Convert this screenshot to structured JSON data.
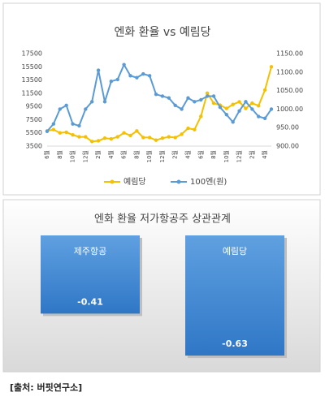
{
  "chart_data": [
    {
      "type": "line",
      "title": "엔화 환율 vs 예림당",
      "categories": [
        "6월",
        null,
        "8월",
        null,
        "10월",
        null,
        "12월",
        null,
        "2월",
        null,
        "4월",
        null,
        "6월",
        null,
        "8월",
        null,
        "10월",
        null,
        "12월",
        null,
        "2월",
        null,
        "4월",
        null,
        "6월",
        null,
        "8월",
        null,
        "10월",
        null,
        "12월",
        null,
        "2월",
        null,
        "4월",
        null
      ],
      "series": [
        {
          "name": "예림당",
          "color": "#f5c000",
          "values": [
            5800,
            6000,
            5500,
            5600,
            5200,
            4900,
            4900,
            4200,
            4300,
            4700,
            4600,
            4900,
            5500,
            5100,
            5800,
            4800,
            4800,
            4400,
            4700,
            4900,
            4800,
            5300,
            6200,
            6000,
            8000,
            11500,
            10000,
            9700,
            9200,
            9800,
            10200,
            9200,
            10000,
            9600,
            12000,
            15500
          ]
        },
        {
          "name": "100엔(원)",
          "color": "#5b9bd5",
          "axis": "y2",
          "values": [
            940,
            960,
            1000,
            1010,
            960,
            955,
            1000,
            1020,
            1105,
            1020,
            1075,
            1080,
            1120,
            1090,
            1085,
            1095,
            1090,
            1040,
            1035,
            1030,
            1010,
            1000,
            1030,
            1020,
            1025,
            1035,
            1035,
            1005,
            985,
            965,
            995,
            1020,
            1000,
            980,
            975,
            1000
          ]
        }
      ],
      "ylim": [
        3500,
        17500
      ],
      "yticks": [
        3500,
        5500,
        7500,
        9500,
        11500,
        13500,
        15500,
        17500
      ],
      "y2lim": [
        900,
        1150
      ],
      "y2ticks": [
        {
          "value": 900,
          "label": "900.00"
        },
        {
          "value": 950,
          "label": "950.00"
        },
        {
          "value": 1000,
          "label": "1000.00"
        },
        {
          "value": 1050,
          "label": "1050.00"
        },
        {
          "value": 1100,
          "label": "1100.00"
        },
        {
          "value": 1150,
          "label": "1150.00"
        }
      ],
      "legend": "bottom"
    },
    {
      "type": "bar",
      "title": "엔화 환율 저가항공주 상관관계",
      "categories": [
        "제주항공",
        "예림당"
      ],
      "values": [
        -0.41,
        -0.63
      ],
      "color": "#3f83cf"
    }
  ],
  "source": "[출처: 버핏연구소]"
}
